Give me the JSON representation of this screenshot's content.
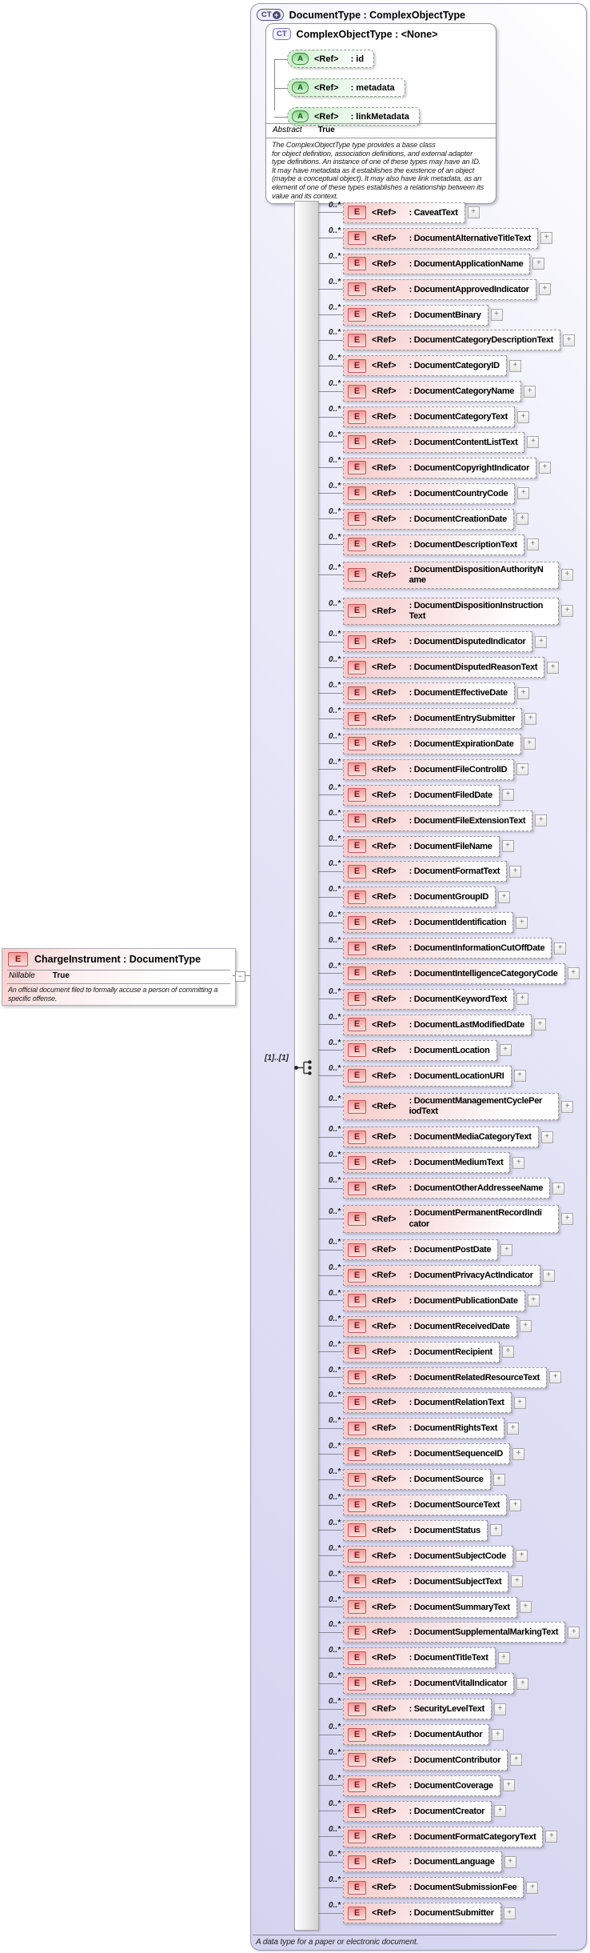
{
  "labels": {
    "ref": "<Ref>",
    "colon_prefix": ": ",
    "cardinality": "0..*",
    "expand": "+",
    "collapse": "−",
    "element_icon": "E",
    "attribute_icon": "A",
    "complex_type_icon": "CT",
    "plus_badge": "+"
  },
  "root_panel": {
    "title": "DocumentType : ComplexObjectType",
    "sequence_cardinality": "[1]..[1]",
    "footer_annotation": "A data type for a paper or electronic document."
  },
  "base_type_box": {
    "title": "ComplexObjectType : <None>",
    "attributes": [
      {
        "name": "id"
      },
      {
        "name": "metadata"
      },
      {
        "name": "linkMetadata"
      }
    ],
    "facet": {
      "label": "Abstract",
      "value": "True"
    },
    "annotation": "The ComplexObjectType type provides a base class\nfor object definition, association definitions, and external adapter\ntype definitions. An instance of one of these types may have an ID.\nIt may have metadata as it establishes the existence of an object\n(maybe a conceptual object). It may also have link metadata, as an\nelement of one of these types establishes a relationship between its\nvalue and its context."
  },
  "charge_instrument_box": {
    "title": "ChargeInstrument : DocumentType",
    "facet": {
      "label": "Nillable",
      "value": "True"
    },
    "annotation": "An official document filed to formally accuse a person of committing a\nspecific offense."
  },
  "elements": {
    "items": [
      {
        "name": "CaveatText"
      },
      {
        "name": "DocumentAlternativeTitleText"
      },
      {
        "name": "DocumentApplicationName"
      },
      {
        "name": "DocumentApprovedIndicator"
      },
      {
        "name": "DocumentBinary"
      },
      {
        "name": "DocumentCategoryDescriptionText"
      },
      {
        "name": "DocumentCategoryID"
      },
      {
        "name": "DocumentCategoryName"
      },
      {
        "name": "DocumentCategoryText"
      },
      {
        "name": "DocumentContentListText"
      },
      {
        "name": "DocumentCopyrightIndicator"
      },
      {
        "name": "DocumentCountryCode"
      },
      {
        "name": "DocumentCreationDate"
      },
      {
        "name": "DocumentDescriptionText"
      },
      {
        "name": "DocumentDispositionAuthorityName",
        "wrap": true
      },
      {
        "name": "DocumentDispositionInstructionText",
        "wrap": true
      },
      {
        "name": "DocumentDisputedIndicator"
      },
      {
        "name": "DocumentDisputedReasonText"
      },
      {
        "name": "DocumentEffectiveDate"
      },
      {
        "name": "DocumentEntrySubmitter"
      },
      {
        "name": "DocumentExpirationDate"
      },
      {
        "name": "DocumentFileControlID"
      },
      {
        "name": "DocumentFiledDate"
      },
      {
        "name": "DocumentFileExtensionText"
      },
      {
        "name": "DocumentFileName"
      },
      {
        "name": "DocumentFormatText"
      },
      {
        "name": "DocumentGroupID"
      },
      {
        "name": "DocumentIdentification"
      },
      {
        "name": "DocumentInformationCutOffDate"
      },
      {
        "name": "DocumentIntelligenceCategoryCode"
      },
      {
        "name": "DocumentKeywordText"
      },
      {
        "name": "DocumentLastModifiedDate"
      },
      {
        "name": "DocumentLocation"
      },
      {
        "name": "DocumentLocationURI"
      },
      {
        "name": "DocumentManagementCyclePeriodText",
        "wrap": true
      },
      {
        "name": "DocumentMediaCategoryText"
      },
      {
        "name": "DocumentMediumText"
      },
      {
        "name": "DocumentOtherAddresseeName"
      },
      {
        "name": "DocumentPermanentRecordIndicator",
        "wrap": true
      },
      {
        "name": "DocumentPostDate"
      },
      {
        "name": "DocumentPrivacyActIndicator"
      },
      {
        "name": "DocumentPublicationDate"
      },
      {
        "name": "DocumentReceivedDate"
      },
      {
        "name": "DocumentRecipient"
      },
      {
        "name": "DocumentRelatedResourceText"
      },
      {
        "name": "DocumentRelationText"
      },
      {
        "name": "DocumentRightsText"
      },
      {
        "name": "DocumentSequenceID"
      },
      {
        "name": "DocumentSource"
      },
      {
        "name": "DocumentSourceText"
      },
      {
        "name": "DocumentStatus"
      },
      {
        "name": "DocumentSubjectCode"
      },
      {
        "name": "DocumentSubjectText"
      },
      {
        "name": "DocumentSummaryText"
      },
      {
        "name": "DocumentSupplementalMarkingText"
      },
      {
        "name": "DocumentTitleText"
      },
      {
        "name": "DocumentVitalIndicator"
      },
      {
        "name": "SecurityLevelText"
      },
      {
        "name": "DocumentAuthor"
      },
      {
        "name": "DocumentContributor"
      },
      {
        "name": "DocumentCoverage"
      },
      {
        "name": "DocumentCreator"
      },
      {
        "name": "DocumentFormatCategoryText"
      },
      {
        "name": "DocumentLanguage"
      },
      {
        "name": "DocumentSubmissionFee"
      },
      {
        "name": "DocumentSubmitter"
      }
    ]
  },
  "colors": {
    "panel_lavender": "#dcdcf4",
    "element_pink": "#f7c9c9",
    "attribute_green": "#c9eec9",
    "element_icon_red": "#c05a5a",
    "attribute_icon_green": "#3d8b3d",
    "complex_type_blue": "#7878c0",
    "root_icon_navy": "#4a4a70",
    "line_gray": "#8a8a9a"
  }
}
